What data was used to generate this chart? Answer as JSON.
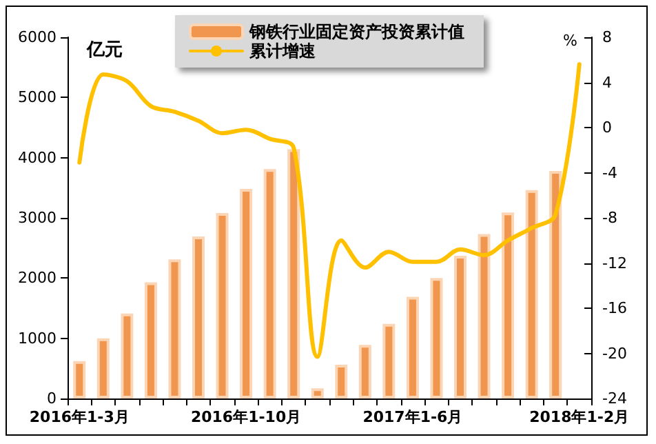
{
  "chart_data": {
    "type": "bar",
    "categories": [
      "2016年1-3月",
      null,
      null,
      null,
      null,
      null,
      null,
      "2016年1-10月",
      null,
      null,
      null,
      null,
      null,
      null,
      "2017年1-6月",
      null,
      null,
      null,
      null,
      null,
      null,
      "2018年1-2月"
    ],
    "series": [
      {
        "name": "钢铁行业固定资产投资累计值",
        "color": "#f0964f",
        "values": [
          620,
          1000,
          1410,
          1930,
          2310,
          2690,
          3080,
          3480,
          3810,
          4140,
          170,
          560,
          890,
          1240,
          1690,
          2000,
          2370,
          2730,
          3090,
          3460,
          3780,
          null
        ]
      },
      {
        "name": "累计增速",
        "type": "line",
        "axis": "y2",
        "color": "#ffc000",
        "values": [
          -3.1,
          4.7,
          4.1,
          1.9,
          1.4,
          0.6,
          -0.5,
          -0.2,
          -1.0,
          -1.8,
          -20.3,
          -10.0,
          -12.4,
          -11.0,
          -11.9,
          -11.9,
          -10.8,
          -11.3,
          -10.0,
          -8.9,
          -7.7,
          5.6
        ]
      }
    ],
    "ylabel": "亿元",
    "y2label": "%",
    "ylim": [
      0,
      6000
    ],
    "yticks": [
      0,
      1000,
      2000,
      3000,
      4000,
      5000,
      6000
    ],
    "y2lim": [
      -24,
      8
    ],
    "y2ticks": [
      -24,
      -20,
      -16,
      -12,
      -8,
      -4,
      0,
      4,
      8
    ],
    "grid": false,
    "legend": "top",
    "line_style": "solid"
  }
}
